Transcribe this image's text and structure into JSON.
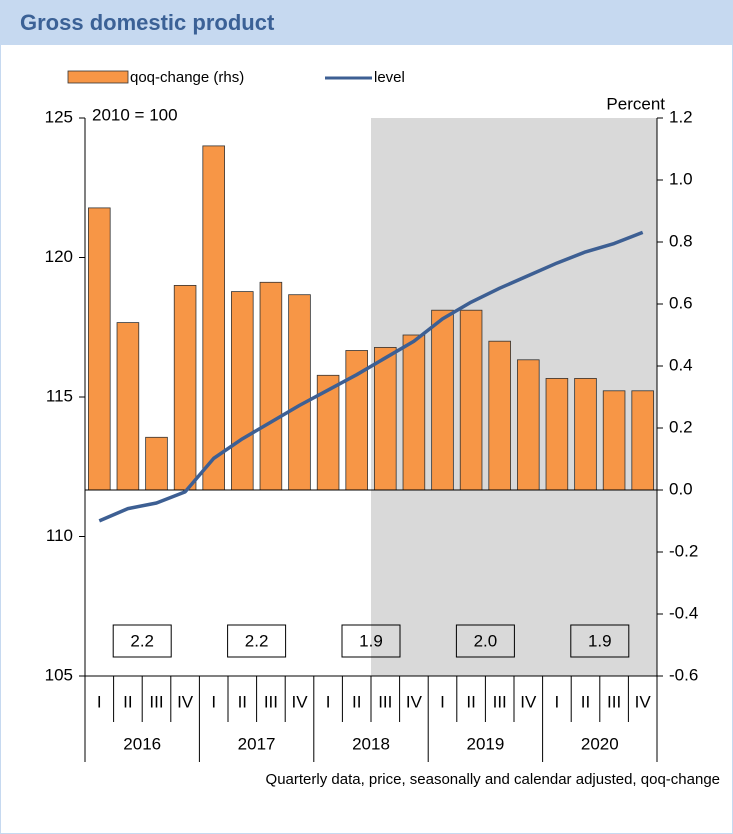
{
  "chart_data": {
    "type": "bar-line",
    "title": "Gross domestic product",
    "subtitle": "2010 = 100",
    "y2_label": "Percent",
    "footnote": "Quarterly data, price, seasonally and calendar adjusted, qoq-change",
    "categories": [
      "I",
      "II",
      "III",
      "IV",
      "I",
      "II",
      "III",
      "IV",
      "I",
      "II",
      "III",
      "IV",
      "I",
      "II",
      "III",
      "IV",
      "I",
      "II",
      "III",
      "IV"
    ],
    "years": [
      "2016",
      "2017",
      "2018",
      "2019",
      "2020"
    ],
    "shaded_start_index": 10,
    "series": [
      {
        "name": "qoq-change (rhs)",
        "type": "bar",
        "axis": "y2",
        "color": "#f79646",
        "values": [
          0.91,
          0.54,
          0.17,
          0.66,
          1.11,
          0.64,
          0.67,
          0.63,
          0.37,
          0.45,
          0.46,
          0.5,
          0.58,
          0.58,
          0.48,
          0.42,
          0.36,
          0.36,
          0.32,
          0.32
        ]
      },
      {
        "name": "level",
        "type": "line",
        "axis": "y",
        "color": "#3d5f93",
        "values": [
          110.56,
          111.0,
          111.2,
          111.6,
          112.8,
          113.5,
          114.1,
          114.7,
          115.25,
          115.8,
          116.4,
          117.0,
          117.8,
          118.4,
          118.9,
          119.35,
          119.8,
          120.2,
          120.5,
          120.9
        ]
      }
    ],
    "annual_values": [
      2.2,
      2.2,
      1.9,
      2.0,
      1.9
    ],
    "annual_value_labels": [
      "2.2",
      "2.2",
      "1.9",
      "2.0",
      "1.9"
    ],
    "ylim": [
      105,
      125
    ],
    "yticks": [
      105,
      110,
      115,
      120,
      125
    ],
    "y2lim": [
      -0.6,
      1.2
    ],
    "y2ticks": [
      -0.6,
      -0.4,
      -0.2,
      {
        "value": 0,
        "label": "0.0"
      },
      0.2,
      0.4,
      0.6,
      0.8,
      {
        "value": 1,
        "label": "1.0"
      },
      1.2
    ]
  }
}
